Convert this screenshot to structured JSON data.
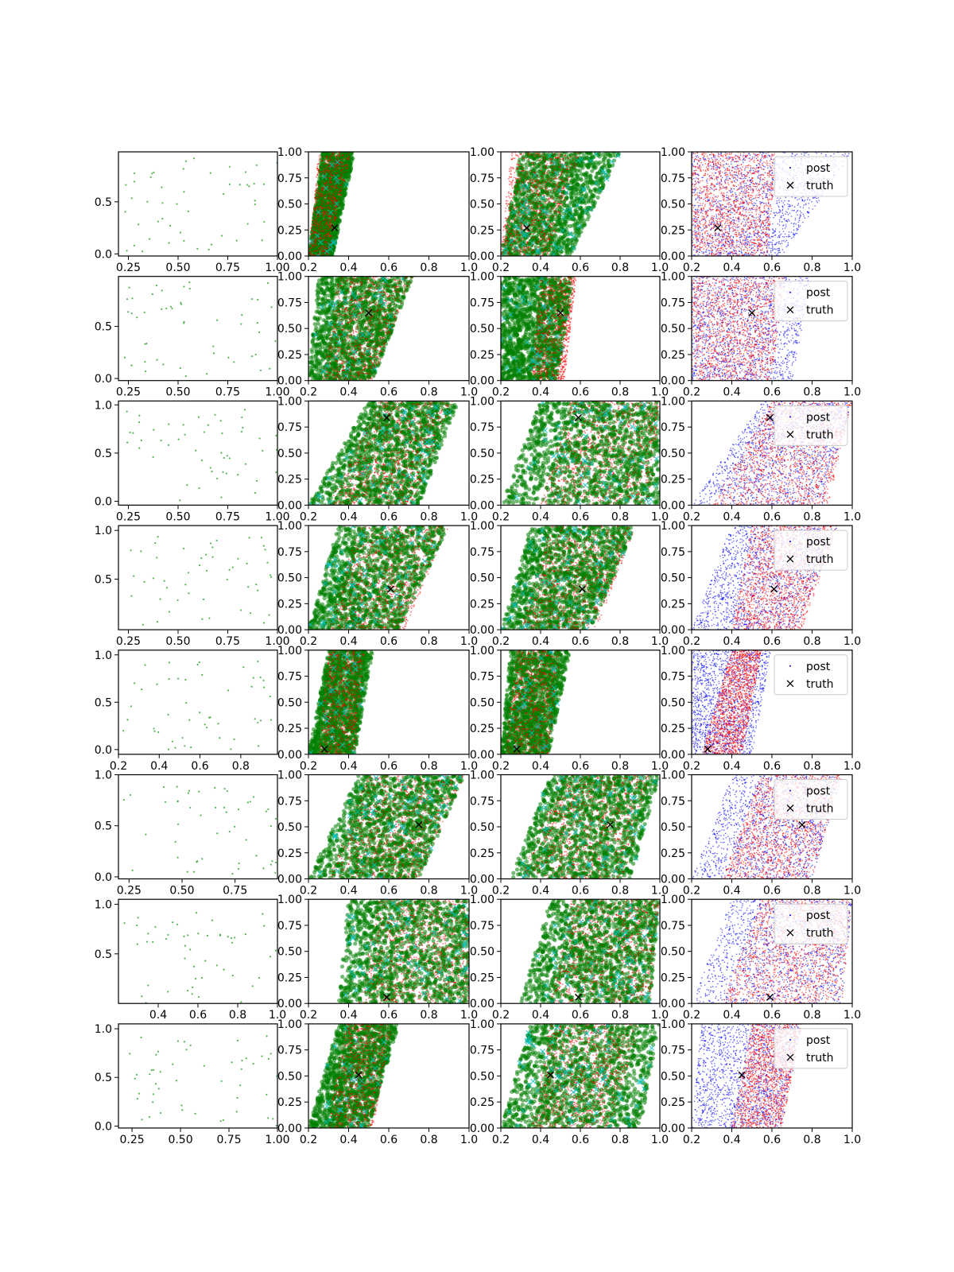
{
  "chart_data": {
    "type": "scatter",
    "layout_desc": "8 rows x 4 columns grid of scatter panels",
    "colors": {
      "samples_green": "#2ca02c",
      "posterior_green": "#007f00",
      "posterior_red": "#ff0000",
      "posterior_blue": "#0000ff",
      "proposals_cyan": "#00bfbf",
      "truth_black": "#000000"
    },
    "legend": {
      "post_label": "post",
      "truth_label": "truth",
      "placement": "upper right"
    },
    "rows": [
      {
        "truth": [
          0.33,
          0.27
        ],
        "col1": {
          "xlim": [
            0.2,
            1.0
          ],
          "ylim": [
            -0.02,
            0.98
          ],
          "xticks": [
            0.25,
            0.5,
            0.75,
            1.0
          ],
          "xticklabels": [
            "0.25",
            "0.50",
            "0.75",
            "1.00"
          ],
          "yticks": [
            0.0,
            0.5
          ],
          "yticklabels": [
            "0.0",
            "0.5"
          ]
        },
        "col2": {
          "band": [
            [
              0.2,
              0.32
            ],
            [
              0.27,
              0.43
            ]
          ],
          "red_band": [
            [
              0.2,
              0.3
            ],
            [
              0.25,
              0.41
            ]
          ],
          "cyan_n": 20
        },
        "col3": {
          "band": [
            [
              0.2,
              0.55
            ],
            [
              0.3,
              0.8
            ]
          ],
          "red_band": [
            [
              0.2,
              0.44
            ],
            [
              0.25,
              0.6
            ]
          ],
          "cyan_n": 70
        },
        "col4": {
          "band": [
            [
              0.2,
              0.65
            ],
            [
              0.2,
              1.0
            ]
          ],
          "red_band": [
            [
              0.2,
              0.58
            ],
            [
              0.2,
              0.62
            ]
          ]
        }
      },
      {
        "truth": [
          0.5,
          0.65
        ],
        "col1": {
          "xlim": [
            0.2,
            1.0
          ],
          "ylim": [
            -0.02,
            0.98
          ],
          "xticks": [
            0.25,
            0.5,
            0.75,
            1.0
          ],
          "xticklabels": [
            "0.25",
            "0.50",
            "0.75",
            "1.00"
          ],
          "yticks": [
            0.0,
            0.5
          ],
          "yticklabels": [
            "0.0",
            "0.5"
          ]
        },
        "col2": {
          "band": [
            [
              0.2,
              0.52
            ],
            [
              0.25,
              0.72
            ]
          ],
          "red_band": [
            [
              0.27,
              0.52
            ],
            [
              0.35,
              0.72
            ]
          ],
          "cyan_n": 40
        },
        "col3": {
          "band": [
            [
              0.2,
              0.48
            ],
            [
              0.2,
              0.57
            ]
          ],
          "red_band": [
            [
              0.35,
              0.52
            ],
            [
              0.4,
              0.58
            ]
          ],
          "cyan_n": 40
        },
        "col4": {
          "band": [
            [
              0.2,
              0.7
            ],
            [
              0.2,
              0.8
            ]
          ],
          "red_band": [
            [
              0.2,
              0.6
            ],
            [
              0.2,
              0.66
            ]
          ]
        }
      },
      {
        "truth": [
          0.59,
          0.84
        ],
        "col1": {
          "xlim": [
            0.2,
            1.0
          ],
          "ylim": [
            -0.04,
            1.04
          ],
          "xticks": [
            0.25,
            0.5,
            0.75,
            1.0
          ],
          "xticklabels": [
            "0.25",
            "0.50",
            "0.75",
            "1.00"
          ],
          "yticks": [
            0.0,
            0.5,
            1.0
          ],
          "yticklabels": [
            "0.0",
            "0.5",
            "1.0"
          ]
        },
        "col2": {
          "band": [
            [
              0.2,
              0.75
            ],
            [
              0.5,
              0.95
            ]
          ],
          "red_band": [
            [
              0.3,
              0.72
            ],
            [
              0.55,
              0.92
            ]
          ],
          "cyan_n": 60
        },
        "col3": {
          "band": [
            [
              0.2,
              1.0
            ],
            [
              0.4,
              1.0
            ]
          ],
          "red_band": [
            [
              0.4,
              0.95
            ],
            [
              0.55,
              1.0
            ]
          ],
          "cyan_n": 60
        },
        "col4": {
          "band": [
            [
              0.2,
              0.85
            ],
            [
              0.55,
              1.0
            ]
          ],
          "red_band": [
            [
              0.3,
              0.88
            ],
            [
              0.6,
              1.0
            ]
          ]
        }
      },
      {
        "truth": [
          0.61,
          0.39
        ],
        "col1": {
          "xlim": [
            0.2,
            1.0
          ],
          "ylim": [
            -0.02,
            1.05
          ],
          "xticks": [
            0.25,
            0.5,
            0.75,
            1.0
          ],
          "xticklabels": [
            "0.25",
            "0.50",
            "0.75",
            "1.00"
          ],
          "yticks": [
            0.5,
            1.0
          ],
          "yticklabels": [
            "0.5",
            "1.0"
          ]
        },
        "col2": {
          "band": [
            [
              0.2,
              0.65
            ],
            [
              0.35,
              0.9
            ]
          ],
          "red_band": [
            [
              0.3,
              0.68
            ],
            [
              0.45,
              0.9
            ]
          ],
          "cyan_n": 60
        },
        "col3": {
          "band": [
            [
              0.2,
              0.65
            ],
            [
              0.35,
              0.88
            ]
          ],
          "red_band": [
            [
              0.3,
              0.68
            ],
            [
              0.45,
              0.88
            ]
          ],
          "cyan_n": 60
        },
        "col4": {
          "band": [
            [
              0.2,
              0.72
            ],
            [
              0.4,
              0.93
            ]
          ],
          "red_band": [
            [
              0.4,
              0.75
            ],
            [
              0.5,
              0.93
            ]
          ]
        }
      },
      {
        "truth": [
          0.28,
          0.05
        ],
        "col1": {
          "xlim": [
            0.2,
            0.98
          ],
          "ylim": [
            -0.05,
            1.05
          ],
          "xticks": [
            0.2,
            0.4,
            0.6,
            0.8
          ],
          "xticklabels": [
            "0.2",
            "0.4",
            "0.6",
            "0.8"
          ],
          "yticks": [
            0.0,
            0.5,
            1.0
          ],
          "yticklabels": [
            "0.0",
            "0.5",
            "1.0"
          ]
        },
        "col2": {
          "band": [
            [
              0.2,
              0.43
            ],
            [
              0.3,
              0.52
            ]
          ],
          "red_band": [
            [
              0.25,
              0.43
            ],
            [
              0.3,
              0.48
            ]
          ],
          "cyan_n": 25
        },
        "col3": {
          "band": [
            [
              0.2,
              0.44
            ],
            [
              0.25,
              0.55
            ]
          ],
          "red_band": [
            [
              0.22,
              0.44
            ],
            [
              0.28,
              0.5
            ]
          ],
          "cyan_n": 25
        },
        "col4": {
          "band": [
            [
              0.2,
              0.5
            ],
            [
              0.2,
              0.6
            ]
          ],
          "red_band": [
            [
              0.25,
              0.45
            ],
            [
              0.4,
              0.55
            ]
          ]
        }
      },
      {
        "truth": [
          0.75,
          0.52
        ],
        "col1": {
          "xlim": [
            0.2,
            0.95
          ],
          "ylim": [
            -0.02,
            1.0
          ],
          "xticks": [
            0.25,
            0.5,
            0.75
          ],
          "xticklabels": [
            "0.25",
            "0.50",
            "0.75"
          ],
          "yticks": [
            0.0,
            0.5,
            1.0
          ],
          "yticklabels": [
            "0.0",
            "0.5",
            "1.0"
          ]
        },
        "col2": {
          "band": [
            [
              0.2,
              0.75
            ],
            [
              0.45,
              0.98
            ]
          ],
          "red_band": [
            [
              0.3,
              0.75
            ],
            [
              0.5,
              0.98
            ]
          ],
          "cyan_n": 60
        },
        "col3": {
          "band": [
            [
              0.25,
              0.85
            ],
            [
              0.45,
              1.0
            ]
          ],
          "red_band": [
            [
              0.3,
              0.82
            ],
            [
              0.5,
              0.95
            ]
          ],
          "cyan_n": 60
        },
        "col4": {
          "band": [
            [
              0.2,
              0.8
            ],
            [
              0.4,
              0.95
            ]
          ],
          "red_band": [
            [
              0.35,
              0.8
            ],
            [
              0.55,
              0.95
            ]
          ]
        }
      },
      {
        "truth": [
          0.59,
          0.06
        ],
        "col1": {
          "xlim": [
            0.2,
            1.0
          ],
          "ylim": [
            0.0,
            1.05
          ],
          "xticks": [
            0.4,
            0.6,
            0.8,
            1.0
          ],
          "xticklabels": [
            "0.4",
            "0.6",
            "0.8",
            "1.0"
          ],
          "yticks": [
            0.5,
            1.0
          ],
          "yticklabels": [
            "0.5",
            "1.0"
          ]
        },
        "col2": {
          "band": [
            [
              0.35,
              1.0
            ],
            [
              0.4,
              1.0
            ]
          ],
          "red_band": [
            [
              0.45,
              1.0
            ],
            [
              0.55,
              1.0
            ]
          ],
          "cyan_n": 60
        },
        "col3": {
          "band": [
            [
              0.3,
              0.95
            ],
            [
              0.45,
              1.0
            ]
          ],
          "red_band": [
            [
              0.45,
              0.95
            ],
            [
              0.55,
              1.0
            ]
          ],
          "cyan_n": 60
        },
        "col4": {
          "band": [
            [
              0.2,
              0.95
            ],
            [
              0.4,
              1.0
            ]
          ],
          "red_band": [
            [
              0.35,
              0.95
            ],
            [
              0.55,
              1.0
            ]
          ]
        }
      },
      {
        "truth": [
          0.45,
          0.51
        ],
        "col1": {
          "xlim": [
            0.18,
            1.0
          ],
          "ylim": [
            -0.02,
            1.05
          ],
          "xticks": [
            0.25,
            0.5,
            0.75,
            1.0
          ],
          "xticklabels": [
            "0.25",
            "0.50",
            "0.75",
            "1.00"
          ],
          "yticks": [
            0.0,
            0.5,
            1.0
          ],
          "yticklabels": [
            "0.0",
            "0.5",
            "1.0"
          ]
        },
        "col2": {
          "band": [
            [
              0.2,
              0.5
            ],
            [
              0.35,
              0.65
            ]
          ],
          "red_band": [
            [
              0.3,
              0.52
            ],
            [
              0.38,
              0.62
            ]
          ],
          "cyan_n": 30
        },
        "col3": {
          "band": [
            [
              0.2,
              0.9
            ],
            [
              0.35,
              1.0
            ]
          ],
          "red_band": [
            [
              0.35,
              0.75
            ],
            [
              0.45,
              0.9
            ]
          ],
          "cyan_n": 70
        },
        "col4": {
          "band": [
            [
              0.2,
              0.65
            ],
            [
              0.25,
              0.75
            ]
          ],
          "red_band": [
            [
              0.4,
              0.65
            ],
            [
              0.5,
              0.75
            ]
          ]
        }
      }
    ],
    "posterior_axes": {
      "xlim": [
        0.2,
        1.0
      ],
      "ylim": [
        0.0,
        1.0
      ],
      "xticks": [
        0.2,
        0.4,
        0.6,
        0.8,
        1.0
      ],
      "xticklabels": [
        "0.2",
        "0.4",
        "0.6",
        "0.8",
        "1.0"
      ],
      "yticks": [
        0.0,
        0.25,
        0.5,
        0.75,
        1.0
      ],
      "yticklabels": [
        "0.00",
        "0.25",
        "0.50",
        "0.75",
        "1.00"
      ]
    }
  }
}
